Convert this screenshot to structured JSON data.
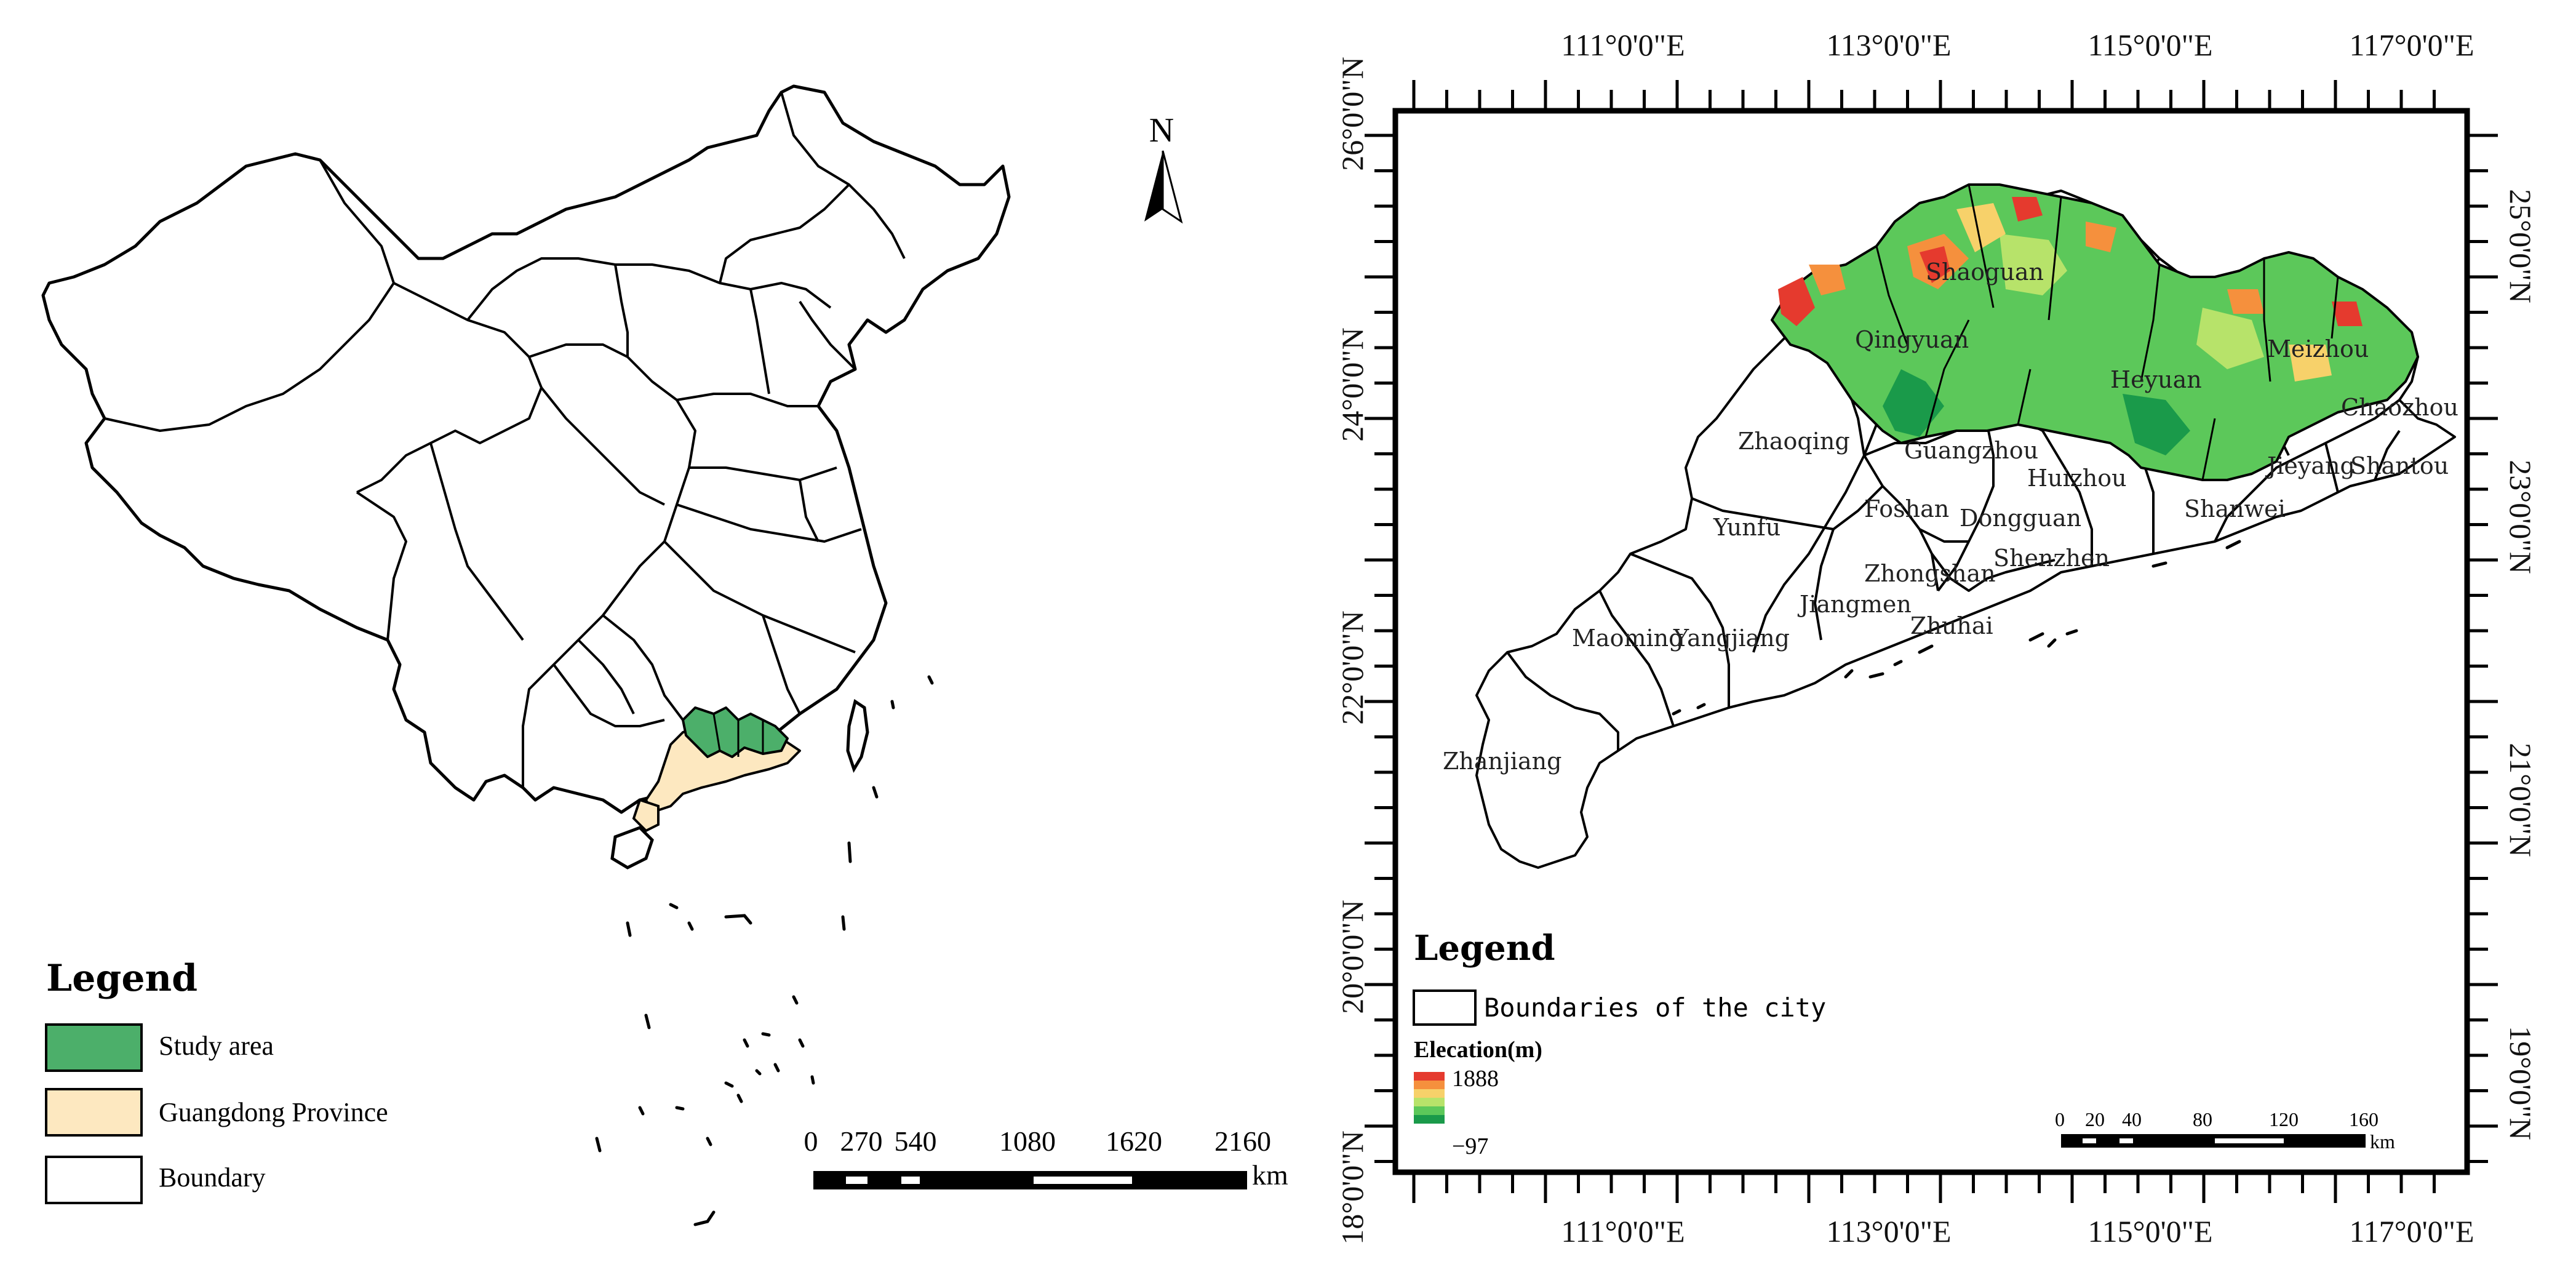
{
  "left_map": {
    "north_arrow": {
      "letter": "N",
      "icon": "north-arrow-icon"
    },
    "legend": {
      "title": "Legend",
      "items": [
        {
          "label": "Study area",
          "color": "#4caf6a"
        },
        {
          "label": "Guangdong Province",
          "color": "#fde8c0"
        },
        {
          "label": "Boundary",
          "color": "#ffffff"
        }
      ]
    },
    "scale_bar": {
      "ticks": [
        "0",
        "270",
        "540",
        "1080",
        "1620",
        "2160"
      ],
      "unit": "km"
    }
  },
  "right_map": {
    "longitude_labels": [
      "111°0'0\"E",
      "113°0'0\"E",
      "115°0'0\"E",
      "117°0'0\"E"
    ],
    "latitude_labels_left": [
      "26°0'0\"N",
      "24°0'0\"N",
      "22°0'0\"N",
      "20°0'0\"N",
      "18°0'0\"N"
    ],
    "latitude_labels_right": [
      "25°0'0\"N",
      "23°0'0\"N",
      "21°0'0\"N",
      "19°0'0\"N"
    ],
    "cities": [
      "Shaoguan",
      "Qingyuan",
      "Meizhou",
      "Heyuan",
      "Chaozhou",
      "Zhaoqing",
      "Guangzhou",
      "Huizhou",
      "Jieyang",
      "Shantou",
      "Yunfu",
      "Foshan",
      "Dongguan",
      "Shanwei",
      "Zhongshan",
      "Shenzhen",
      "Jiangmen",
      "Zhuhai",
      "Maoming",
      "Yangjiang",
      "Zhanjiang"
    ],
    "legend": {
      "title": "Legend",
      "boundary_label": "Boundaries of the city",
      "elevation_title": "Elecation(m)",
      "elevation_max": "1888",
      "elevation_min": "−97",
      "ramp_colors": [
        "#e53a2e",
        "#f5903d",
        "#f7d16a",
        "#b7e36a",
        "#5cc85a",
        "#1a9a4a"
      ]
    },
    "scale_bar": {
      "ticks": [
        "0",
        "20",
        "40",
        "80",
        "120",
        "160"
      ],
      "unit": "km"
    }
  }
}
